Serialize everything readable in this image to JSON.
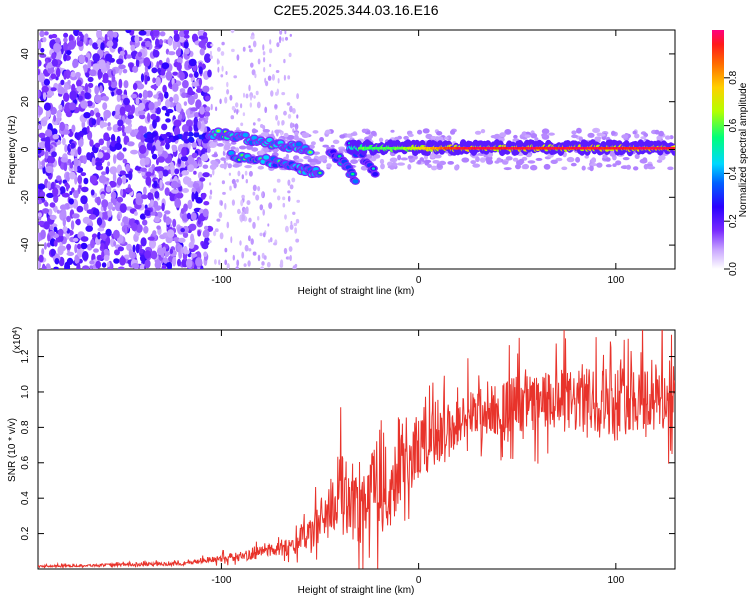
{
  "title": "C2E5.2025.344.03.16.E16",
  "chart_data": [
    {
      "type": "heatmap",
      "xlabel": "Height of straight line (km)",
      "ylabel": "Frequency (Hz)",
      "xlim": [
        -193,
        130
      ],
      "ylim": [
        -50,
        50
      ],
      "x_ticks": [
        -100,
        0,
        100
      ],
      "y_ticks": [
        -40,
        -20,
        0,
        20,
        40
      ],
      "colorbar": {
        "label": "Normalized spectral amplitude",
        "range": [
          0.0,
          1.0
        ],
        "ticks": [
          0.0,
          0.2,
          0.4,
          0.6,
          0.8
        ],
        "tick_labels": [
          "0.0",
          "0.2",
          "0.4",
          "0.6",
          "0.8"
        ],
        "colors": [
          "#ffffff",
          "#b47cff",
          "#5a00ff",
          "#0000ff",
          "#00c8ff",
          "#00ff80",
          "#ffff00",
          "#ff8000",
          "#ff0000",
          "#ff0080"
        ]
      },
      "features": [
        {
          "name": "noise",
          "x_range": [
            -193,
            -106
          ],
          "amplitude": 0.15
        },
        {
          "name": "branch-upper",
          "points": [
            [
              -106,
              7
            ],
            [
              -90,
              5
            ],
            [
              -70,
              2
            ],
            [
              -55,
              0
            ]
          ],
          "amplitude": 0.35
        },
        {
          "name": "branch-lower",
          "points": [
            [
              -95,
              -3
            ],
            [
              -75,
              -5
            ],
            [
              -60,
              -8
            ],
            [
              -50,
              -10
            ]
          ],
          "amplitude": 0.3
        },
        {
          "name": "carrier",
          "x_range": [
            -35,
            130
          ],
          "frequency": 0.5,
          "amplitude": 0.95
        }
      ]
    },
    {
      "type": "line",
      "xlabel": "Height of straight line (km)",
      "ylabel": "SNR (10 * v/v)",
      "y_multiplier": "(x10",
      "y_multiplier_exp": "4",
      "y_multiplier_close": ")",
      "xlim": [
        -193,
        130
      ],
      "ylim": [
        0,
        13500
      ],
      "x_ticks": [
        -100,
        0,
        100
      ],
      "y_ticks": [
        2000,
        4000,
        6000,
        8000,
        10000,
        12000
      ],
      "y_tick_labels": [
        "0.2",
        "0.4",
        "0.6",
        "0.8",
        "1.0",
        "1.2"
      ],
      "color": "#e8332b",
      "series": [
        {
          "name": "SNR",
          "x": [
            -193,
            -120,
            -100,
            -85,
            -75,
            -65,
            -55,
            -50,
            -45,
            -40,
            -35,
            -30,
            -25,
            -20,
            -15,
            -10,
            -5,
            0,
            5,
            10,
            15,
            20,
            25,
            30,
            40,
            50,
            60,
            70,
            80,
            90,
            100,
            110,
            120,
            130
          ],
          "y": [
            150,
            300,
            600,
            800,
            1100,
            1300,
            2000,
            2600,
            3500,
            4200,
            4000,
            3600,
            4200,
            5200,
            4000,
            6200,
            6500,
            6800,
            7200,
            7500,
            7800,
            8200,
            8600,
            8800,
            9000,
            9400,
            9300,
            9500,
            9400,
            9600,
            9500,
            9700,
            9600,
            9800
          ],
          "spread": [
            50,
            100,
            200,
            300,
            400,
            500,
            900,
            1300,
            1800,
            2200,
            2300,
            2100,
            2400,
            2800,
            2400,
            2500,
            2200,
            1800,
            1700,
            1700,
            1600,
            1500,
            1500,
            1500,
            1500,
            1600,
            1700,
            1800,
            1800,
            1900,
            2000,
            2000,
            2100,
            2100
          ]
        }
      ]
    }
  ]
}
